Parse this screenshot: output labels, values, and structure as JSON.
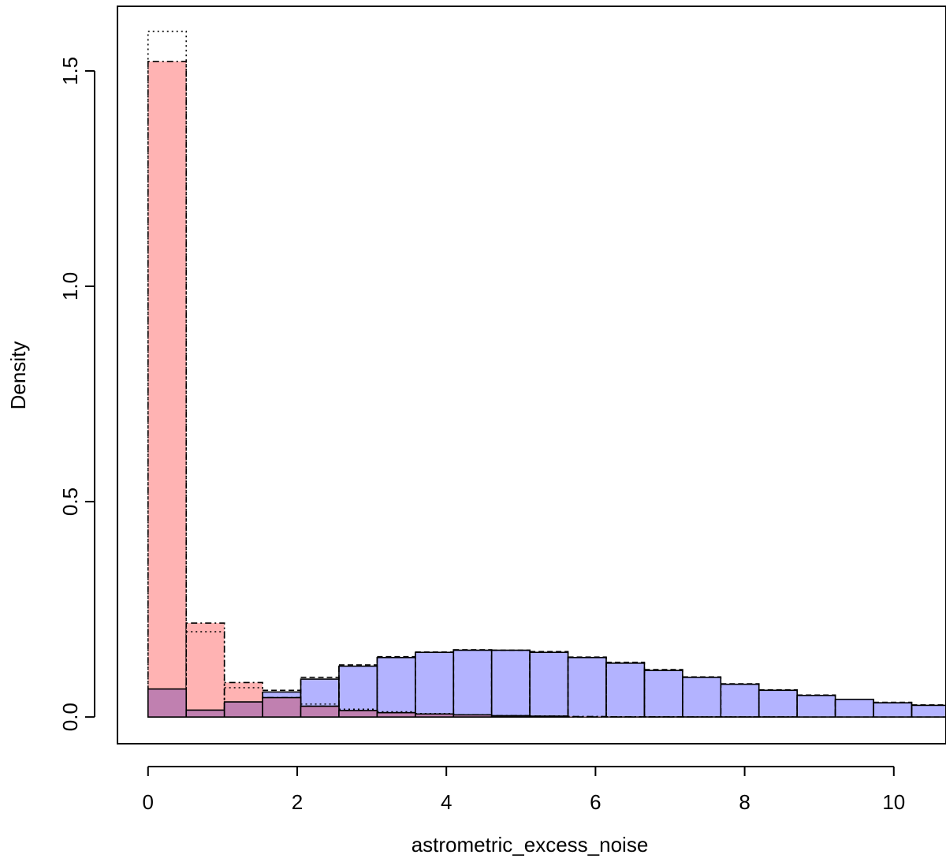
{
  "chart_data": {
    "type": "bar",
    "title": "",
    "xlabel": "astrometric_excess_noise",
    "ylabel": "Density",
    "xlim": [
      -0.41,
      10.7
    ],
    "ylim": [
      -0.062,
      1.65
    ],
    "x_ticks": [
      0,
      2,
      4,
      6,
      8,
      10
    ],
    "x_tick_labels": [
      "0",
      "2",
      "4",
      "6",
      "8",
      "10"
    ],
    "y_ticks": [
      0.0,
      0.5,
      1.0,
      1.5
    ],
    "y_tick_labels": [
      "0.0",
      "0.5",
      "1.0",
      "1.5"
    ],
    "grid": false,
    "legend": "none",
    "bin_edges": [
      0,
      0.512,
      1.024,
      1.536,
      2.048,
      2.56,
      3.072,
      3.584,
      4.096,
      4.608,
      5.12,
      5.632,
      6.144,
      6.656,
      7.168,
      7.68,
      8.192,
      8.704,
      9.216,
      9.728,
      10.24,
      10.752
    ],
    "series": [
      {
        "fill": "#b3b3ff",
        "outline_style": "solid",
        "values": [
          0.065,
          0.016,
          0.035,
          0.058,
          0.088,
          0.118,
          0.138,
          0.15,
          0.155,
          0.155,
          0.15,
          0.138,
          0.125,
          0.108,
          0.092,
          0.076,
          0.062,
          0.05,
          0.041,
          0.033,
          0.027
        ]
      },
      {
        "fill": "none",
        "outline_style": "dashed",
        "values": [
          0.07,
          0.018,
          0.038,
          0.062,
          0.092,
          0.121,
          0.14,
          0.151,
          0.156,
          0.155,
          0.152,
          0.139,
          0.127,
          0.11,
          0.093,
          0.077,
          0.063,
          0.051,
          0.041,
          0.034,
          0.028
        ]
      },
      {
        "fill": "#ffb3b3",
        "outline_style": "dotdash",
        "values": [
          1.522,
          0.218,
          0.08,
          0.045,
          0.025,
          0.015,
          0.01,
          0.007,
          0.005,
          0.003,
          0.002,
          0.001,
          0.0005,
          0.0003,
          0.0002,
          0.0001,
          0.0001,
          0,
          0,
          0,
          0
        ]
      },
      {
        "fill": "none",
        "outline_style": "dotted",
        "values": [
          1.592,
          0.198,
          0.068,
          0.038,
          0.03,
          0.018,
          0.012,
          0.008,
          0.005,
          0.003,
          0.002,
          0.001,
          0.0005,
          0.0003,
          0.0002,
          0.0001,
          0.0001,
          0,
          0,
          0,
          0
        ]
      }
    ],
    "overlap_color": "#c080b0"
  }
}
